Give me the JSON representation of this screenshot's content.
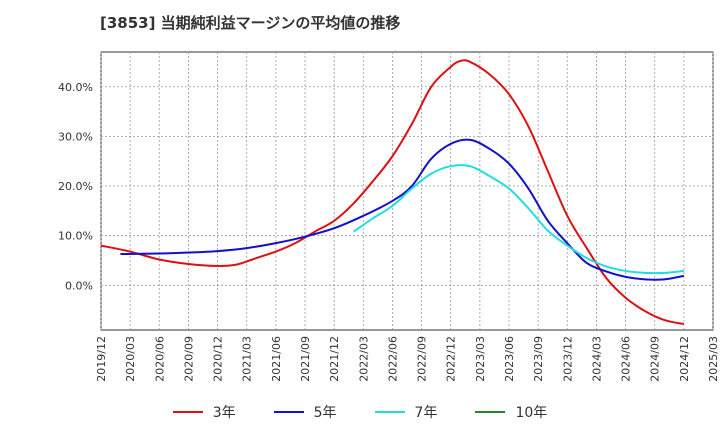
{
  "title": "[3853]  当期純利益マージンの平均値の推移",
  "chart_data": {
    "type": "line",
    "title": "[3853]  当期純利益マージンの平均値の推移",
    "ylim": [
      -9,
      47
    ],
    "y_ticks": [
      0,
      10,
      20,
      30,
      40
    ],
    "y_tick_labels": [
      "0.0%",
      "10.0%",
      "20.0%",
      "30.0%",
      "40.0%"
    ],
    "x_tick_labels": [
      "2019/12",
      "2020/03",
      "2020/06",
      "2020/09",
      "2020/12",
      "2021/03",
      "2021/06",
      "2021/09",
      "2021/12",
      "2022/03",
      "2022/06",
      "2022/09",
      "2022/12",
      "2023/03",
      "2023/06",
      "2023/09",
      "2023/12",
      "2024/03",
      "2024/06",
      "2024/09",
      "2024/12",
      "2025/03"
    ],
    "grid": true,
    "legend_position": "bottom",
    "series": [
      {
        "name": "3年",
        "color": "#dd1111",
        "points": [
          [
            "2019/12",
            8.0
          ],
          [
            "2020/03",
            6.8
          ],
          [
            "2020/06",
            5.2
          ],
          [
            "2020/09",
            4.3
          ],
          [
            "2020/12",
            3.9
          ],
          [
            "2021/02",
            4.2
          ],
          [
            "2021/04",
            5.5
          ],
          [
            "2021/06",
            6.8
          ],
          [
            "2021/08",
            8.5
          ],
          [
            "2021/10",
            10.8
          ],
          [
            "2021/12",
            13.0
          ],
          [
            "2022/02",
            16.5
          ],
          [
            "2022/04",
            21.0
          ],
          [
            "2022/06",
            26.0
          ],
          [
            "2022/08",
            32.5
          ],
          [
            "2022/10",
            40.0
          ],
          [
            "2022/12",
            44.0
          ],
          [
            "2023/01",
            45.2
          ],
          [
            "2023/02",
            45.0
          ],
          [
            "2023/04",
            42.5
          ],
          [
            "2023/06",
            38.5
          ],
          [
            "2023/08",
            32.0
          ],
          [
            "2023/10",
            23.0
          ],
          [
            "2023/12",
            14.0
          ],
          [
            "2024/02",
            7.5
          ],
          [
            "2024/04",
            1.5
          ],
          [
            "2024/06",
            -2.5
          ],
          [
            "2024/08",
            -5.2
          ],
          [
            "2024/10",
            -7.0
          ],
          [
            "2024/12",
            -7.8
          ]
        ]
      },
      {
        "name": "5年",
        "color": "#1111cc",
        "points": [
          [
            "2020/02",
            6.3
          ],
          [
            "2020/06",
            6.4
          ],
          [
            "2020/09",
            6.6
          ],
          [
            "2020/12",
            6.9
          ],
          [
            "2021/03",
            7.5
          ],
          [
            "2021/06",
            8.5
          ],
          [
            "2021/09",
            9.8
          ],
          [
            "2021/12",
            11.5
          ],
          [
            "2022/03",
            14.0
          ],
          [
            "2022/06",
            17.0
          ],
          [
            "2022/08",
            20.0
          ],
          [
            "2022/10",
            25.5
          ],
          [
            "2022/12",
            28.5
          ],
          [
            "2023/02",
            29.3
          ],
          [
            "2023/04",
            27.5
          ],
          [
            "2023/06",
            24.5
          ],
          [
            "2023/08",
            19.5
          ],
          [
            "2023/10",
            13.0
          ],
          [
            "2023/12",
            8.5
          ],
          [
            "2024/02",
            4.5
          ],
          [
            "2024/04",
            2.8
          ],
          [
            "2024/06",
            1.7
          ],
          [
            "2024/08",
            1.2
          ],
          [
            "2024/10",
            1.2
          ],
          [
            "2024/12",
            1.9
          ]
        ]
      },
      {
        "name": "7年",
        "color": "#22dddd",
        "points": [
          [
            "2022/02",
            10.8
          ],
          [
            "2022/04",
            13.5
          ],
          [
            "2022/06",
            16.0
          ],
          [
            "2022/08",
            19.5
          ],
          [
            "2022/10",
            22.5
          ],
          [
            "2022/12",
            24.0
          ],
          [
            "2023/02",
            24.0
          ],
          [
            "2023/04",
            22.0
          ],
          [
            "2023/06",
            19.5
          ],
          [
            "2023/08",
            15.5
          ],
          [
            "2023/10",
            11.0
          ],
          [
            "2023/12",
            8.0
          ],
          [
            "2024/02",
            5.5
          ],
          [
            "2024/04",
            3.8
          ],
          [
            "2024/06",
            2.9
          ],
          [
            "2024/08",
            2.5
          ],
          [
            "2024/10",
            2.5
          ],
          [
            "2024/12",
            2.9
          ]
        ]
      },
      {
        "name": "10年",
        "color": "#228822",
        "points": []
      }
    ]
  }
}
